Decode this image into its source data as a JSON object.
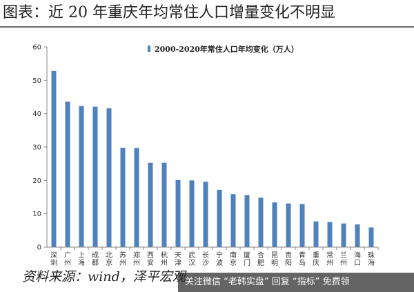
{
  "page": {
    "heading": "图表：近 20 年重庆年均常住人口增量变化不明显",
    "source": "资料来源：wind，泽平宏观",
    "watermark_bar": {
      "text_1": "关注微信",
      "text_2": "“老韩实盘”",
      "text_3": "回复",
      "text_4": "“指标”",
      "text_5": "免费领"
    }
  },
  "chart_data": {
    "type": "bar",
    "title": "",
    "xlabel": "",
    "ylabel": "",
    "ylim": [
      0,
      60
    ],
    "yticks": [
      "0",
      "10",
      "20",
      "30",
      "40",
      "50",
      "60"
    ],
    "grid": false,
    "legend_position": "top-center",
    "bar_color": "#4f81bd",
    "categories": [
      "深圳",
      "广州",
      "上海",
      "成都",
      "北京",
      "苏州",
      "郑州",
      "西安",
      "杭州",
      "天津",
      "武汉",
      "长沙",
      "宁波",
      "南京",
      "厦门",
      "合肥",
      "昆明",
      "贵阳",
      "青岛",
      "重庆",
      "常州",
      "兰州",
      "海口",
      "珠海"
    ],
    "series": [
      {
        "name": "2000-2020年常住人口年均变化（万人）",
        "values": [
          52.8,
          43.6,
          42.3,
          42.1,
          41.6,
          29.8,
          29.7,
          25.3,
          25.3,
          20.1,
          20.0,
          19.6,
          17.2,
          15.9,
          15.6,
          14.8,
          13.4,
          13.1,
          12.9,
          7.7,
          7.5,
          7.1,
          6.8,
          5.9
        ]
      }
    ]
  }
}
